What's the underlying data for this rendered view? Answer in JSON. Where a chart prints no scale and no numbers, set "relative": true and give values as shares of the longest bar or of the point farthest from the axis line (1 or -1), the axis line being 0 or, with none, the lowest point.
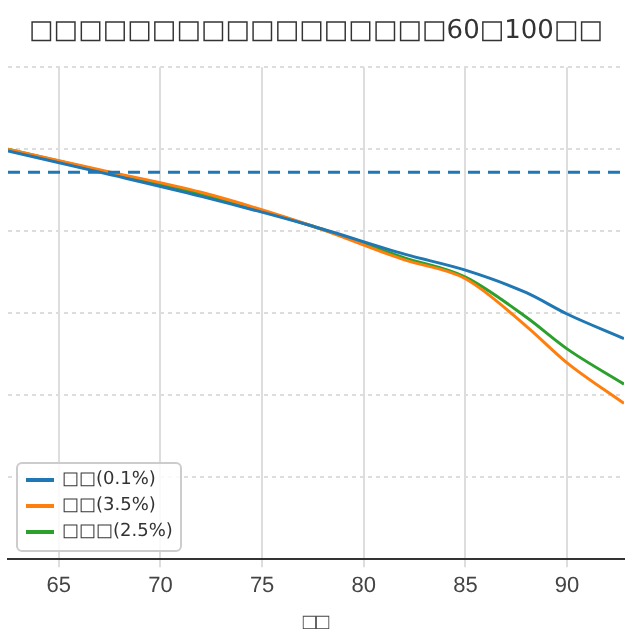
{
  "chart_data": {
    "type": "line",
    "title": "□□□□□□□□□□□□□□□□□60□100□□",
    "xlabel": "□□",
    "relative": true,
    "x": [
      62.5,
      67,
      72,
      77.5,
      82,
      85,
      88,
      90,
      92.8
    ],
    "xlim": [
      62.5,
      92.8
    ],
    "xticks": [
      65,
      70,
      75,
      80,
      85,
      90
    ],
    "series": [
      {
        "name": "□□(0.1%)",
        "color": "#1f77b4",
        "values": [
          0.996,
          0.944,
          0.885,
          0.812,
          0.744,
          0.705,
          0.65,
          0.598,
          0.538
        ]
      },
      {
        "name": "□□(3.5%)",
        "color": "#ff7f0e",
        "values": [
          1,
          0.95,
          0.895,
          0.812,
          0.73,
          0.684,
          0.568,
          0.479,
          0.38
        ]
      },
      {
        "name": "□□□(2.5%)",
        "color": "#2ca02c",
        "values": [
          1,
          0.948,
          0.89,
          0.812,
          0.735,
          0.688,
          0.59,
          0.513,
          0.427
        ]
      }
    ],
    "ref_lines": [
      {
        "axis": "y",
        "value": 0.944,
        "color": "#1f77b4",
        "line_style": "dashed"
      }
    ],
    "grid": true,
    "legend": "bottom left",
    "marker": "none",
    "line_style": "solid"
  }
}
